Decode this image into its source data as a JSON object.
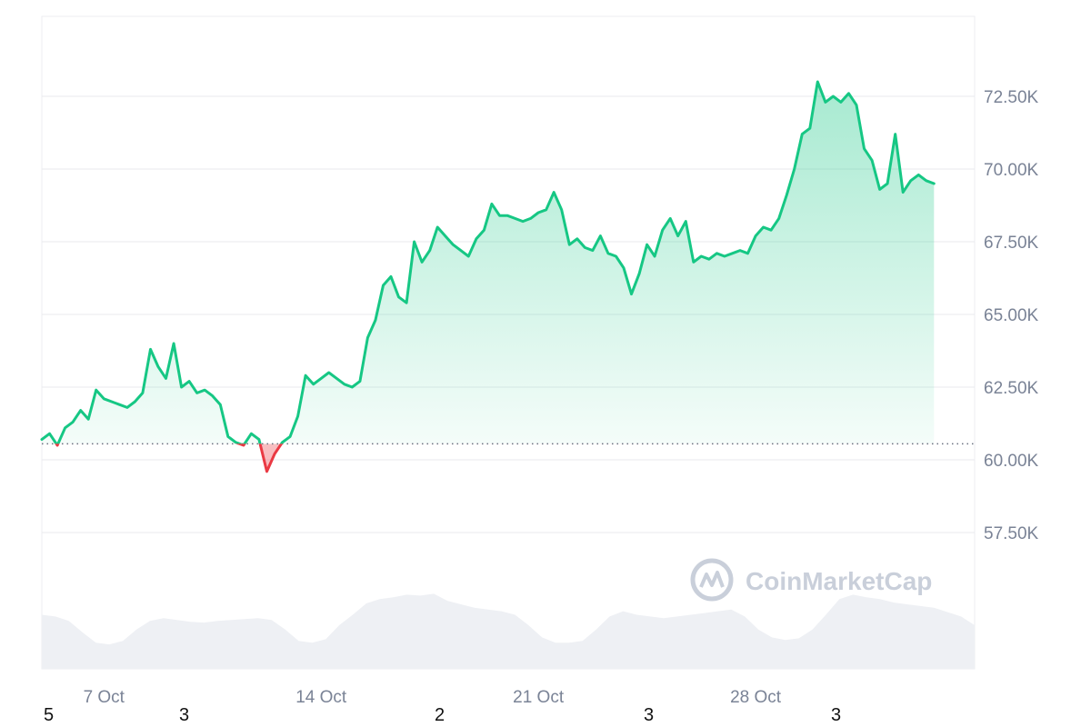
{
  "chart_data": {
    "type": "area",
    "x_axis": {
      "type": "date",
      "ticks": [
        "7 Oct",
        "14 Oct",
        "21 Oct",
        "28 Oct"
      ],
      "range": [
        "5 Oct",
        "4 Nov"
      ]
    },
    "y_axis": {
      "ticks": [
        "57.50K",
        "60.00K",
        "62.50K",
        "65.00K",
        "67.50K",
        "70.00K",
        "72.50K"
      ],
      "ylim": [
        55000,
        75000
      ],
      "position": "right"
    },
    "baseline": 60550,
    "grid": true,
    "series": [
      {
        "points": [
          [
            "5 Oct",
            60700
          ],
          [
            "5 Oct 06:00",
            60900
          ],
          [
            "5 Oct 12:00",
            60500
          ],
          [
            "5 Oct 18:00",
            61100
          ],
          [
            "6 Oct",
            61300
          ],
          [
            "6 Oct 06:00",
            61700
          ],
          [
            "6 Oct 12:00",
            61400
          ],
          [
            "6 Oct 18:00",
            62400
          ],
          [
            "7 Oct",
            62100
          ],
          [
            "7 Oct 06:00",
            62000
          ],
          [
            "7 Oct 12:00",
            61900
          ],
          [
            "7 Oct 18:00",
            61800
          ],
          [
            "8 Oct",
            62000
          ],
          [
            "8 Oct 06:00",
            62300
          ],
          [
            "8 Oct 12:00",
            63800
          ],
          [
            "8 Oct 18:00",
            63200
          ],
          [
            "9 Oct",
            62800
          ],
          [
            "9 Oct 06:00",
            64000
          ],
          [
            "9 Oct 12:00",
            62500
          ],
          [
            "9 Oct 18:00",
            62700
          ],
          [
            "10 Oct",
            62300
          ],
          [
            "10 Oct 06:00",
            62400
          ],
          [
            "10 Oct 12:00",
            62200
          ],
          [
            "10 Oct 18:00",
            61900
          ],
          [
            "11 Oct",
            60800
          ],
          [
            "11 Oct 06:00",
            60600
          ],
          [
            "11 Oct 12:00",
            60500
          ],
          [
            "11 Oct 18:00",
            60900
          ],
          [
            "12 Oct",
            60700
          ],
          [
            "12 Oct 06:00",
            59600
          ],
          [
            "12 Oct 12:00",
            60200
          ],
          [
            "12 Oct 18:00",
            60600
          ],
          [
            "13 Oct",
            60800
          ],
          [
            "13 Oct 06:00",
            61500
          ],
          [
            "13 Oct 12:00",
            62900
          ],
          [
            "13 Oct 18:00",
            62600
          ],
          [
            "14 Oct",
            62800
          ],
          [
            "14 Oct 06:00",
            63000
          ],
          [
            "14 Oct 12:00",
            62800
          ],
          [
            "14 Oct 18:00",
            62600
          ],
          [
            "15 Oct",
            62500
          ],
          [
            "15 Oct 06:00",
            62700
          ],
          [
            "15 Oct 12:00",
            64200
          ],
          [
            "15 Oct 18:00",
            64800
          ],
          [
            "16 Oct",
            66000
          ],
          [
            "16 Oct 06:00",
            66300
          ],
          [
            "16 Oct 12:00",
            65600
          ],
          [
            "16 Oct 18:00",
            65400
          ],
          [
            "17 Oct",
            67500
          ],
          [
            "17 Oct 06:00",
            66800
          ],
          [
            "17 Oct 12:00",
            67200
          ],
          [
            "17 Oct 18:00",
            68000
          ],
          [
            "18 Oct",
            67700
          ],
          [
            "18 Oct 06:00",
            67400
          ],
          [
            "18 Oct 12:00",
            67200
          ],
          [
            "18 Oct 18:00",
            67000
          ],
          [
            "19 Oct",
            67600
          ],
          [
            "19 Oct 06:00",
            67900
          ],
          [
            "19 Oct 12:00",
            68800
          ],
          [
            "19 Oct 18:00",
            68400
          ],
          [
            "20 Oct",
            68400
          ],
          [
            "20 Oct 06:00",
            68300
          ],
          [
            "20 Oct 12:00",
            68200
          ],
          [
            "20 Oct 18:00",
            68300
          ],
          [
            "21 Oct",
            68500
          ],
          [
            "21 Oct 06:00",
            68600
          ],
          [
            "21 Oct 12:00",
            69200
          ],
          [
            "21 Oct 18:00",
            68600
          ],
          [
            "22 Oct",
            67400
          ],
          [
            "22 Oct 06:00",
            67600
          ],
          [
            "22 Oct 12:00",
            67300
          ],
          [
            "22 Oct 18:00",
            67200
          ],
          [
            "23 Oct",
            67700
          ],
          [
            "23 Oct 06:00",
            67100
          ],
          [
            "23 Oct 12:00",
            67000
          ],
          [
            "23 Oct 18:00",
            66600
          ],
          [
            "24 Oct",
            65700
          ],
          [
            "24 Oct 06:00",
            66400
          ],
          [
            "24 Oct 12:00",
            67400
          ],
          [
            "24 Oct 18:00",
            67000
          ],
          [
            "25 Oct",
            67900
          ],
          [
            "25 Oct 06:00",
            68300
          ],
          [
            "25 Oct 12:00",
            67700
          ],
          [
            "25 Oct 18:00",
            68200
          ],
          [
            "26 Oct",
            66800
          ],
          [
            "26 Oct 06:00",
            67000
          ],
          [
            "26 Oct 12:00",
            66900
          ],
          [
            "26 Oct 18:00",
            67100
          ],
          [
            "27 Oct",
            67000
          ],
          [
            "27 Oct 06:00",
            67100
          ],
          [
            "27 Oct 12:00",
            67200
          ],
          [
            "27 Oct 18:00",
            67100
          ],
          [
            "28 Oct",
            67700
          ],
          [
            "28 Oct 06:00",
            68000
          ],
          [
            "28 Oct 12:00",
            67900
          ],
          [
            "28 Oct 18:00",
            68300
          ],
          [
            "29 Oct",
            69100
          ],
          [
            "29 Oct 06:00",
            70000
          ],
          [
            "29 Oct 12:00",
            71200
          ],
          [
            "29 Oct 18:00",
            71400
          ],
          [
            "30 Oct",
            73000
          ],
          [
            "30 Oct 06:00",
            72300
          ],
          [
            "30 Oct 12:00",
            72500
          ],
          [
            "30 Oct 18:00",
            72300
          ],
          [
            "31 Oct",
            72600
          ],
          [
            "31 Oct 06:00",
            72200
          ],
          [
            "31 Oct 12:00",
            70700
          ],
          [
            "31 Oct 18:00",
            70300
          ],
          [
            "1 Nov",
            69300
          ],
          [
            "1 Nov 06:00",
            69500
          ],
          [
            "1 Nov 12:00",
            71200
          ],
          [
            "1 Nov 18:00",
            69200
          ],
          [
            "2 Nov",
            69600
          ],
          [
            "2 Nov 06:00",
            69800
          ],
          [
            "2 Nov 12:00",
            69600
          ],
          [
            "2 Nov 18:00",
            69500
          ]
        ]
      }
    ],
    "volume": {
      "values": [
        0.62,
        0.6,
        0.55,
        0.42,
        0.3,
        0.28,
        0.32,
        0.45,
        0.55,
        0.58,
        0.56,
        0.54,
        0.53,
        0.55,
        0.56,
        0.57,
        0.58,
        0.56,
        0.45,
        0.32,
        0.3,
        0.34,
        0.5,
        0.62,
        0.75,
        0.8,
        0.82,
        0.85,
        0.84,
        0.86,
        0.78,
        0.74,
        0.7,
        0.68,
        0.66,
        0.62,
        0.5,
        0.36,
        0.3,
        0.3,
        0.32,
        0.45,
        0.6,
        0.66,
        0.62,
        0.6,
        0.58,
        0.6,
        0.62,
        0.64,
        0.66,
        0.68,
        0.6,
        0.45,
        0.36,
        0.33,
        0.35,
        0.45,
        0.62,
        0.8,
        0.85,
        0.82,
        0.8,
        0.76,
        0.74,
        0.72,
        0.7,
        0.65,
        0.6,
        0.5
      ],
      "color": "#eef0f4"
    },
    "colors": {
      "up_line": "#16c784",
      "down_line": "#ea3943",
      "grid": "#e8eaee",
      "baseline": "#6b7280"
    }
  },
  "watermark": {
    "text": "CoinMarketCap"
  },
  "footer_labels": [
    "5",
    "3",
    "2",
    "3",
    "3"
  ]
}
